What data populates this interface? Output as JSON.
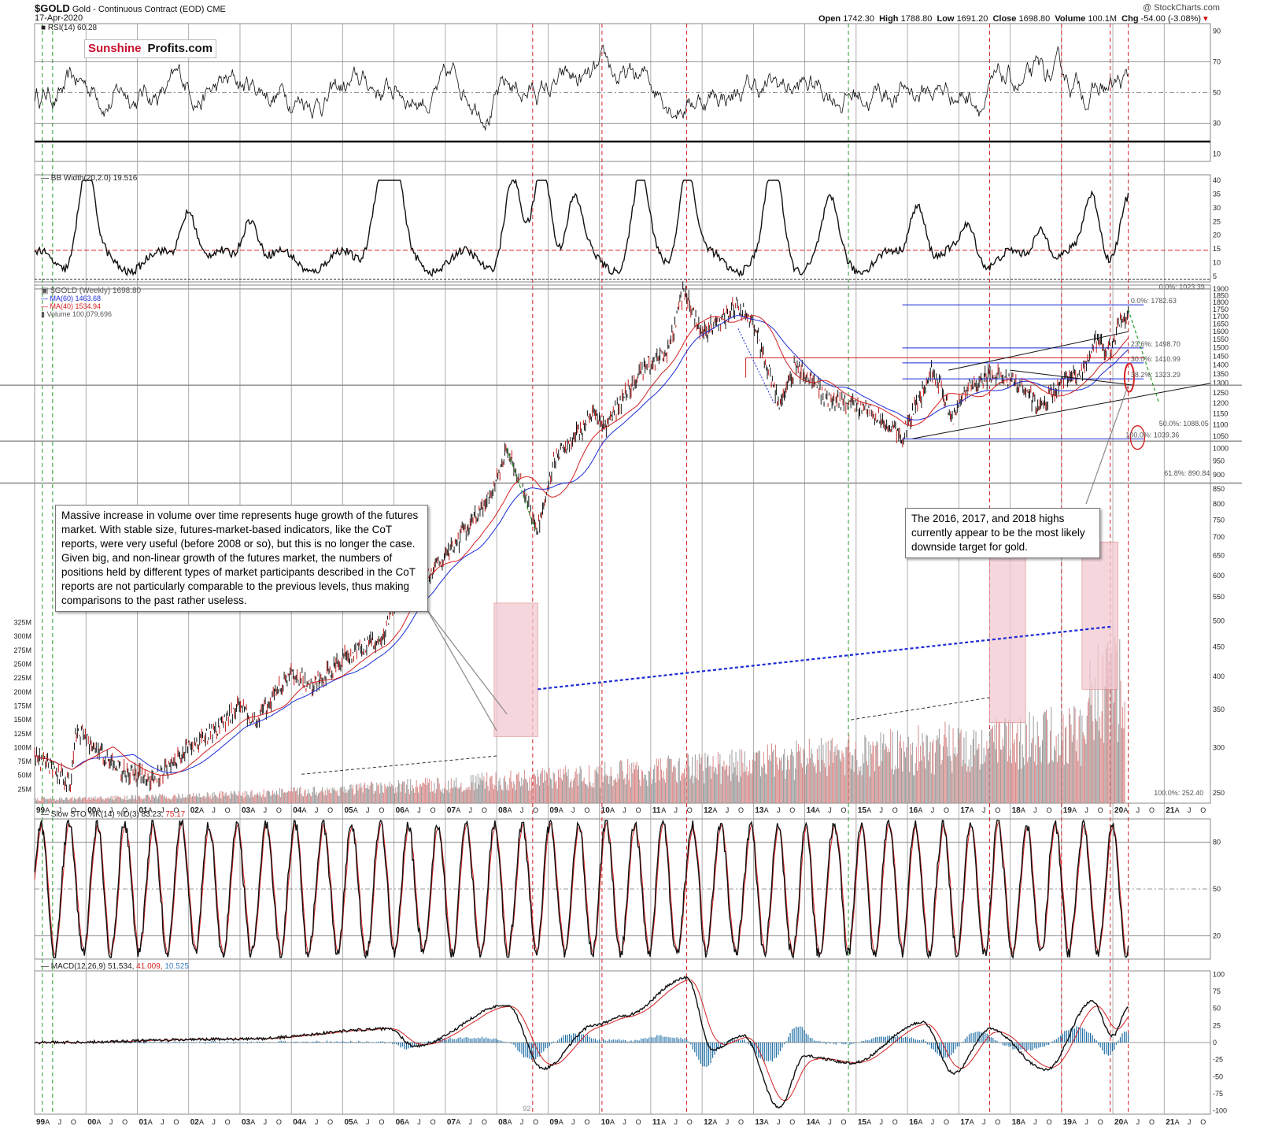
{
  "header": {
    "symbol": "$GOLD",
    "description": "Gold - Continuous Contract (EOD)",
    "exchange": "CME",
    "date": "17-Apr-2020",
    "watermark": "@ StockCharts.com",
    "open_label": "Open",
    "open": "1742.30",
    "high_label": "High",
    "high": "1788.80",
    "low_label": "Low",
    "low": "1691.20",
    "close_label": "Close",
    "close": "1698.80",
    "volume_label": "Volume",
    "volume": "100.1M",
    "chg_label": "Chg",
    "chg": "-54.00 (-3.08%)"
  },
  "logo": {
    "part1": "Sunshine",
    "part2": "Profits.com"
  },
  "panels": {
    "rsi": {
      "legend": "RSI(14) 60.28",
      "ticks": [
        "90",
        "70",
        "50",
        "30",
        "10"
      ]
    },
    "bbw": {
      "legend": "BB Width(20,2.0) 19.516",
      "ticks": [
        "40",
        "35",
        "30",
        "25",
        "20",
        "15",
        "10",
        "5"
      ]
    },
    "price": {
      "legend": "$GOLD (Weekly) 1698.80",
      "ma60": "MA(60) 1463.68",
      "ma40": "MA(40) 1534.94",
      "volume": "Volume 100,079,696",
      "ticks": [
        "1900",
        "1850",
        "1800",
        "1750",
        "1700",
        "1650",
        "1600",
        "1550",
        "1500",
        "1450",
        "1400",
        "1350",
        "1300",
        "1250",
        "1200",
        "1150",
        "1100",
        "1050",
        "1000",
        "950",
        "900",
        "850",
        "800",
        "750",
        "700",
        "650",
        "600",
        "550",
        "500",
        "450",
        "400",
        "350",
        "300",
        "250"
      ],
      "vol_ticks": [
        "325M",
        "300M",
        "275M",
        "250M",
        "225M",
        "200M",
        "175M",
        "150M",
        "125M",
        "100M",
        "75M",
        "50M",
        "25M"
      ],
      "fib_labels": [
        "0.0%: 1782.63",
        "23.6%: 1498.70",
        "30.0%: 1410.99",
        "38.2%: 1323.29",
        "50.0%: 1088.05",
        "100.0%: 1039.36",
        "61.8%: 890.84",
        "0.0%: 1023.39",
        "100.0%: 252.40"
      ]
    },
    "sto": {
      "legend_main": "Slow STO %K(14) %D(3) 83.23,",
      "legend_d": "75.17",
      "ticks": [
        "80",
        "50",
        "20"
      ]
    },
    "macd": {
      "legend_main": "MACD(12,26,9) 51.534,",
      "legend_sig": "41.009,",
      "legend_hist": "10.525",
      "ticks": [
        "100",
        "75",
        "50",
        "25",
        "0",
        "-25",
        "-50",
        "-75",
        "-100"
      ]
    }
  },
  "axis": {
    "years": [
      "99",
      "00",
      "01",
      "02",
      "03",
      "04",
      "05",
      "06",
      "07",
      "08",
      "09",
      "10",
      "11",
      "12",
      "13",
      "14",
      "15",
      "16",
      "17",
      "18",
      "19",
      "20",
      "21"
    ],
    "months": [
      "A",
      "J",
      "O"
    ],
    "extra": "92"
  },
  "callouts": {
    "left": "Massive increase in volume over time represents huge growth of the futures market. With stable size, futures-market-based indicators, like the CoT reports, were very useful (before 2008 or so), but this is no longer the case. Given big, and non-linear growth of the futures market, the numbers of positions held by different types of market participants described in the CoT reports are not particularly comparable to the previous levels, thus making comparisons to the past rather useless.",
    "right": "The 2016, 2017, and 2018 highs currently appear to be the most likely downside target for gold."
  },
  "colors": {
    "red": "#d42020",
    "blue": "#1b2bd6",
    "green": "#2a9a2a",
    "hist": "#1f6fa6",
    "shade": "#f0c8d0"
  },
  "chart_data": {
    "type": "line",
    "title": "$GOLD Gold - Continuous Contract (EOD) CME",
    "x": [
      "1999",
      "2000",
      "2001",
      "2002",
      "2003",
      "2004",
      "2005",
      "2006",
      "2007",
      "2008",
      "2009",
      "2010",
      "2011",
      "2012",
      "2013",
      "2014",
      "2015",
      "2016",
      "2017",
      "2018",
      "2019",
      "2020"
    ],
    "series": [
      {
        "name": "$GOLD (Weekly)",
        "values": [
          270,
          285,
          265,
          320,
          360,
          420,
          440,
          560,
          700,
          850,
          950,
          1200,
          1600,
          1700,
          1400,
          1250,
          1180,
          1150,
          1270,
          1280,
          1400,
          1690
        ]
      },
      {
        "name": "MA(60)",
        "values": [
          275,
          285,
          270,
          300,
          340,
          395,
          430,
          520,
          640,
          800,
          900,
          1120,
          1450,
          1620,
          1560,
          1300,
          1230,
          1160,
          1230,
          1260,
          1300,
          1464
        ]
      },
      {
        "name": "MA(40)",
        "values": [
          275,
          282,
          268,
          305,
          348,
          402,
          435,
          535,
          660,
          820,
          920,
          1150,
          1500,
          1640,
          1500,
          1280,
          1210,
          1170,
          1250,
          1270,
          1330,
          1535
        ]
      }
    ],
    "ylim": [
      250,
      1900
    ],
    "yscale": "log",
    "fibonacci": [
      {
        "label": "0.0%",
        "value": 1782.63
      },
      {
        "label": "23.6%",
        "value": 1498.7
      },
      {
        "label": "30.0%",
        "value": 1410.99
      },
      {
        "label": "38.2%",
        "value": 1323.29
      },
      {
        "label": "50.0%",
        "value": 1088.05
      },
      {
        "label": "100.0%",
        "value": 1039.36
      },
      {
        "label": "61.8%",
        "value": 890.84
      }
    ],
    "legend": "top-left"
  }
}
